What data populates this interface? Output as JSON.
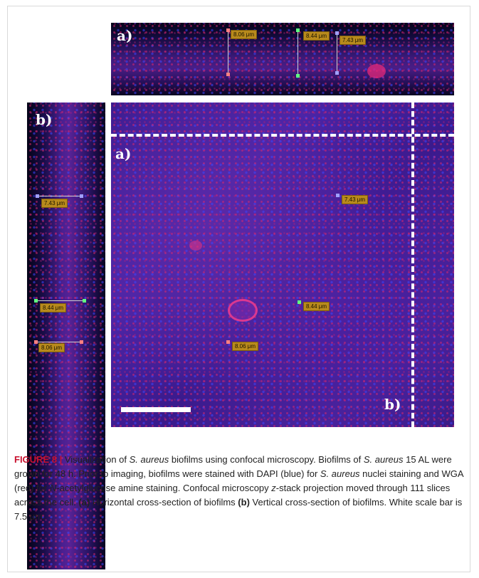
{
  "figure": {
    "panel_letters": {
      "top": "a)",
      "side": "b)",
      "main_a": "a)",
      "main_b": "b)"
    },
    "measurements": {
      "m1": "8.06 μm",
      "m2": "8.44 μm",
      "m3": "7.43 μm"
    },
    "caption": {
      "label": "FIGURE 8 |",
      "t1": " Visualization of ",
      "t1_italic": "S. aureus",
      "t2": " biofilms using confocal microscopy. Biofilms of ",
      "t2_italic": "S. aureus",
      "t3": " 15 AL were grown for 48 h. Prior to imaging, biofilms were stained with DAPI (blue) for ",
      "t3_italic": "S. aureus",
      "t4": " nuclei staining and WGA (red) for ",
      "t4_italic": "N",
      "t5": "-acetylglucose amine staining. Confocal microscopy ",
      "t5_italic": "z",
      "t6": "-stack projection moved through 111 slices across the cell. ",
      "t6_bold": "(a)",
      "t7": " Horizontal cross-section of biofilms ",
      "t7_bold": "(b)",
      "t8": " Vertical cross-section of biofilms. White scale bar is 7.5 μm."
    }
  },
  "colors": {
    "caption_label": "#c8102e",
    "measurement_label_bg": "#b88a1c"
  }
}
